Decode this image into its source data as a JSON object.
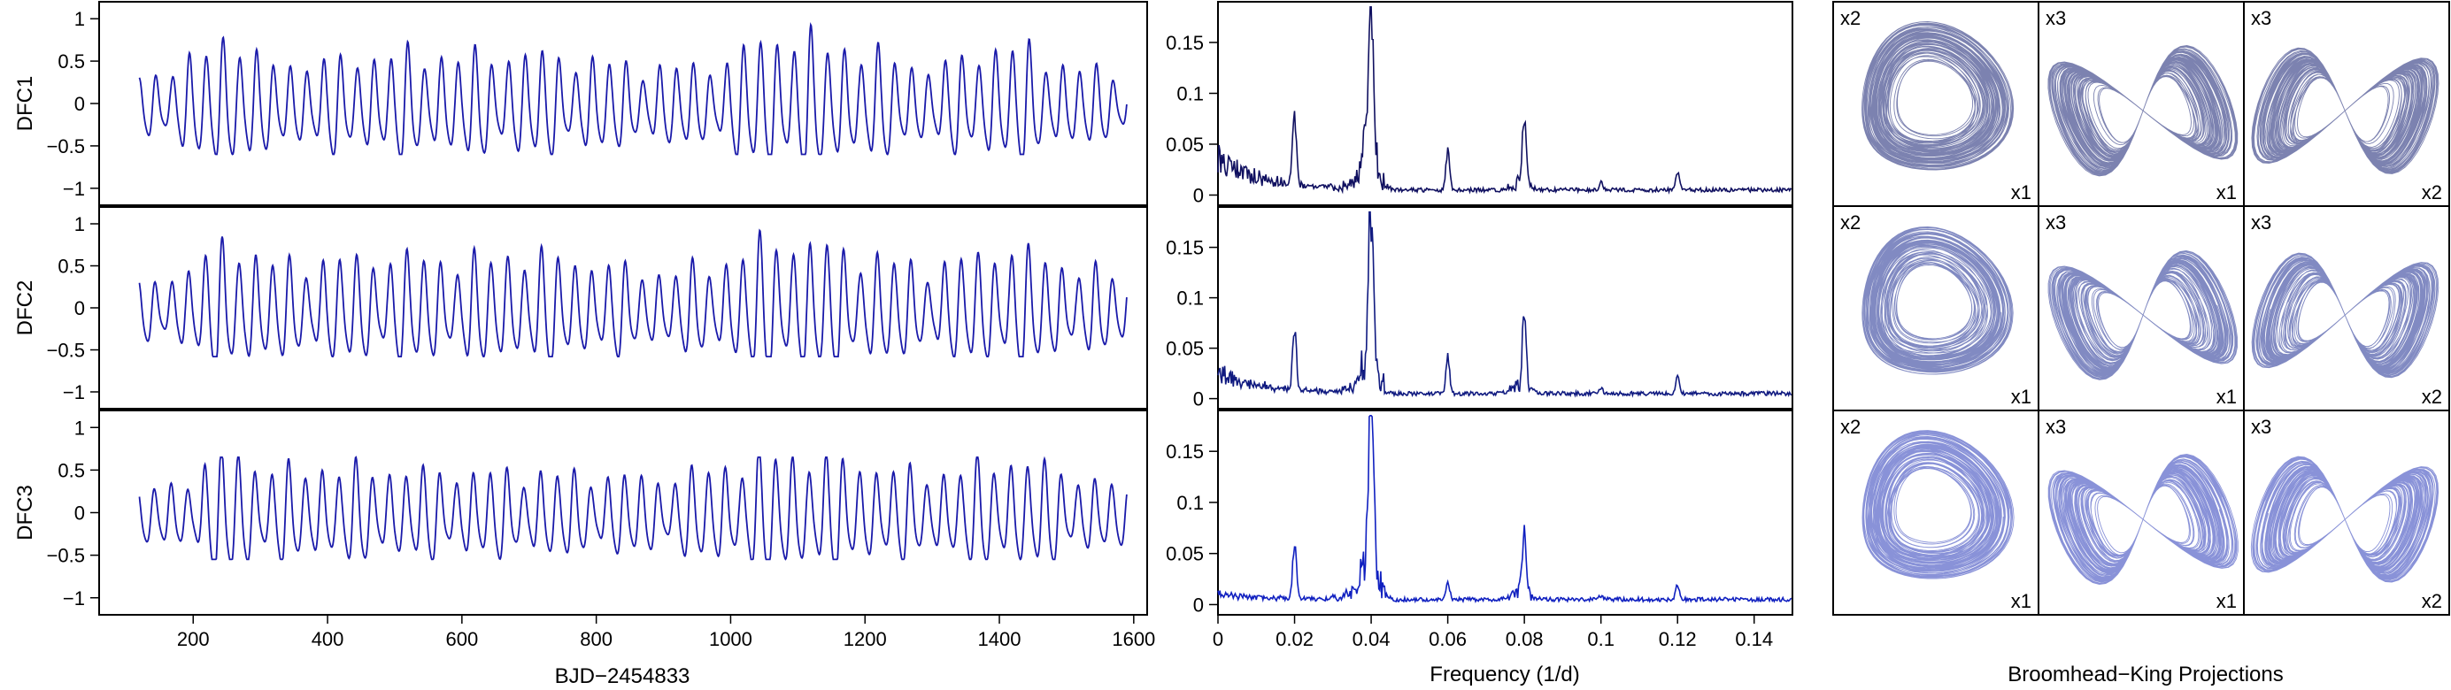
{
  "chart_data": [
    {
      "type": "line",
      "panel": "time-series",
      "xlabel": "BJD−2454833",
      "xlim": [
        60,
        1620
      ],
      "xticks": [
        200,
        400,
        600,
        800,
        1000,
        1200,
        1400,
        1600
      ],
      "xtick_labels": [
        "200",
        "400",
        "600",
        "800",
        "1000",
        "1200",
        "1400",
        "1600"
      ],
      "ylim": [
        1.2,
        -1.2
      ],
      "yticks": [
        -1,
        -0.5,
        0,
        0.5,
        1
      ],
      "ytick_labels": [
        "−1",
        "−0.5",
        "0",
        "0.5",
        "1"
      ],
      "x_start": 120,
      "x_end": 1590,
      "period_days": 25,
      "color": "#1a1aaa",
      "rows": [
        {
          "label": "DFC1",
          "amplitude_envelope": [
            [
              120,
              0.24
            ],
            [
              200,
              0.36
            ],
            [
              260,
              0.62
            ],
            [
              300,
              0.34
            ],
            [
              400,
              0.36
            ],
            [
              500,
              0.42
            ],
            [
              600,
              0.4
            ],
            [
              700,
              0.42
            ],
            [
              800,
              0.36
            ],
            [
              900,
              0.3
            ],
            [
              1000,
              0.36
            ],
            [
              1050,
              0.56
            ],
            [
              1100,
              0.54
            ],
            [
              1200,
              0.44
            ],
            [
              1300,
              0.3
            ],
            [
              1400,
              0.48
            ],
            [
              1450,
              0.44
            ],
            [
              1500,
              0.32
            ],
            [
              1590,
              0.26
            ]
          ],
          "min_value": -0.6,
          "max_value": 1.05
        },
        {
          "label": "DFC2",
          "amplitude_envelope": [
            [
              120,
              0.22
            ],
            [
              200,
              0.34
            ],
            [
              260,
              0.62
            ],
            [
              300,
              0.38
            ],
            [
              400,
              0.4
            ],
            [
              500,
              0.44
            ],
            [
              600,
              0.4
            ],
            [
              700,
              0.46
            ],
            [
              800,
              0.38
            ],
            [
              900,
              0.3
            ],
            [
              1000,
              0.4
            ],
            [
              1050,
              0.56
            ],
            [
              1100,
              0.55
            ],
            [
              1200,
              0.44
            ],
            [
              1300,
              0.34
            ],
            [
              1400,
              0.5
            ],
            [
              1450,
              0.46
            ],
            [
              1500,
              0.36
            ],
            [
              1590,
              0.28
            ]
          ],
          "min_value": -0.58,
          "max_value": 1.0
        },
        {
          "label": "DFC3",
          "amplitude_envelope": [
            [
              120,
              0.2
            ],
            [
              200,
              0.3
            ],
            [
              260,
              0.58
            ],
            [
              300,
              0.36
            ],
            [
              400,
              0.38
            ],
            [
              500,
              0.36
            ],
            [
              600,
              0.34
            ],
            [
              700,
              0.34
            ],
            [
              800,
              0.32
            ],
            [
              900,
              0.3
            ],
            [
              1000,
              0.4
            ],
            [
              1050,
              0.48
            ],
            [
              1100,
              0.48
            ],
            [
              1200,
              0.4
            ],
            [
              1300,
              0.32
            ],
            [
              1400,
              0.44
            ],
            [
              1450,
              0.42
            ],
            [
              1500,
              0.34
            ],
            [
              1590,
              0.22
            ]
          ],
          "min_value": -0.55,
          "max_value": 0.65
        }
      ]
    },
    {
      "type": "line",
      "panel": "power-spectrum",
      "xlabel": "Frequency (1/d)",
      "xlim": [
        0,
        0.15
      ],
      "xticks": [
        0,
        0.02,
        0.04,
        0.06,
        0.08,
        0.1,
        0.12,
        0.14
      ],
      "xtick_labels": [
        "0",
        "0.02",
        "0.04",
        "0.06",
        "0.08",
        "0.1",
        "0.12",
        "0.14"
      ],
      "ylim": [
        -0.01,
        0.19
      ],
      "yticks": [
        0,
        0.05,
        0.1,
        0.15
      ],
      "ytick_labels": [
        "0",
        "0.05",
        "0.1",
        "0.15"
      ],
      "rows": [
        {
          "label": "DFC1",
          "color": "#101060",
          "peaks": [
            [
              0.02,
              0.08
            ],
            [
              0.04,
              0.185
            ],
            [
              0.06,
              0.045
            ],
            [
              0.08,
              0.08
            ],
            [
              0.1,
              0.008
            ],
            [
              0.12,
              0.022
            ]
          ],
          "low_frequency_level": 0.045
        },
        {
          "label": "DFC2",
          "color": "#101a80",
          "peaks": [
            [
              0.02,
              0.07
            ],
            [
              0.04,
              0.185
            ],
            [
              0.06,
              0.04
            ],
            [
              0.08,
              0.085
            ],
            [
              0.1,
              0.006
            ],
            [
              0.12,
              0.02
            ]
          ],
          "low_frequency_level": 0.03
        },
        {
          "label": "DFC3",
          "color": "#1020c0",
          "peaks": [
            [
              0.02,
              0.06
            ],
            [
              0.04,
              0.185
            ],
            [
              0.06,
              0.02
            ],
            [
              0.08,
              0.065
            ],
            [
              0.1,
              0.005
            ],
            [
              0.12,
              0.015
            ]
          ],
          "low_frequency_level": 0.008
        }
      ]
    },
    {
      "type": "scatter",
      "panel": "phase-portraits",
      "xlabel": "Broomhead−King Projections",
      "rows": [
        {
          "label": "DFC1",
          "color": "#101c70",
          "cells": [
            {
              "x_label": "x1",
              "y_label": "x2",
              "shape": "loop"
            },
            {
              "x_label": "x1",
              "y_label": "x3",
              "shape": "butterfly"
            },
            {
              "x_label": "x2",
              "y_label": "x3",
              "shape": "butterfly"
            }
          ]
        },
        {
          "label": "DFC2",
          "color": "#1a2a90",
          "cells": [
            {
              "x_label": "x1",
              "y_label": "x2",
              "shape": "loop"
            },
            {
              "x_label": "x1",
              "y_label": "x3",
              "shape": "butterfly"
            },
            {
              "x_label": "x2",
              "y_label": "x3",
              "shape": "butterfly"
            }
          ]
        },
        {
          "label": "DFC3",
          "color": "#2838b8",
          "cells": [
            {
              "x_label": "x1",
              "y_label": "x2",
              "shape": "loop"
            },
            {
              "x_label": "x1",
              "y_label": "x3",
              "shape": "butterfly"
            },
            {
              "x_label": "x2",
              "y_label": "x3",
              "shape": "butterfly"
            }
          ]
        }
      ]
    }
  ]
}
